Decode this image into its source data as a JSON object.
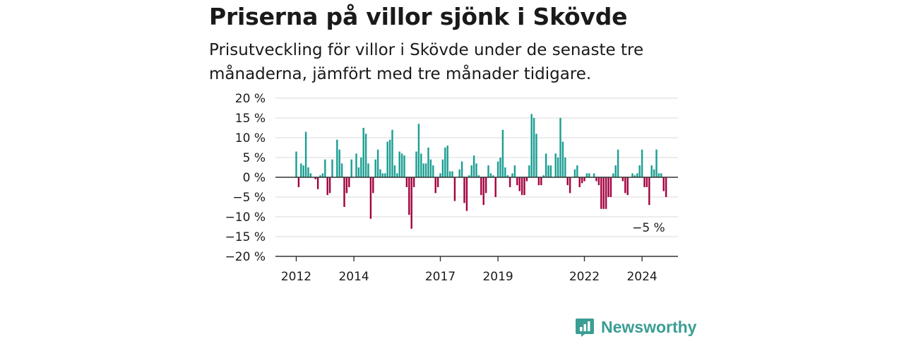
{
  "title": "Priserna på villor sjönk i Skövde",
  "subtitle": "Prisutveckling för villor i Skövde under de senaste tre månaderna, jämfört med tre månader tidigare.",
  "brand": {
    "name": "Newsworthy",
    "icon": "newsworthy-logo-icon",
    "color": "#3a9e94"
  },
  "colors": {
    "positive": "#1a9e92",
    "negative": "#a3003f",
    "grid": "#d9d9d9",
    "axis": "#333333"
  },
  "chart_data": {
    "type": "bar",
    "title": "Priserna på villor sjönk i Skövde",
    "subtitle": "Prisutveckling för villor i Skövde under de senaste tre månaderna, jämfört med tre månader tidigare.",
    "unit": "%",
    "ylim": [
      -20,
      20
    ],
    "y_ticks": [
      20,
      15,
      10,
      5,
      0,
      -5,
      -10,
      -15,
      -20
    ],
    "y_tick_labels": [
      "20 %",
      "15 %",
      "10 %",
      "5 %",
      "0 %",
      "−5 %",
      "−10 %",
      "−15 %",
      "−20 %"
    ],
    "x_ticks": [
      2012,
      2014,
      2017,
      2019,
      2022,
      2024
    ],
    "x_tick_labels": [
      "2012",
      "2014",
      "2017",
      "2019",
      "2022",
      "2024"
    ],
    "x_start": "2012-01",
    "x_interval": "month",
    "grid": true,
    "annotation": {
      "text": "−5 %",
      "target": "last"
    },
    "values": [
      6.5,
      -2.5,
      3.5,
      3,
      11.5,
      2.5,
      1,
      0,
      -0.5,
      -3,
      0.5,
      1,
      4.5,
      -4.5,
      -4,
      4.5,
      0,
      9.5,
      7,
      3.5,
      -7.5,
      -4,
      -2.5,
      4.5,
      0,
      6,
      2.5,
      5,
      12.5,
      11,
      3.5,
      -10.5,
      -4,
      4.5,
      7,
      2,
      1,
      1,
      9,
      9.5,
      12,
      3,
      1,
      6.5,
      6,
      5.5,
      -2.5,
      -9.5,
      -13,
      -2.5,
      6.5,
      13.5,
      6,
      3.5,
      3.5,
      7.5,
      4.5,
      3,
      -4,
      -2.5,
      1,
      4.5,
      7.5,
      8,
      1.5,
      1.5,
      -6,
      0,
      2,
      4,
      -6.5,
      -8.5,
      0.5,
      3,
      5.5,
      3.5,
      0.5,
      -4.5,
      -7,
      -4,
      3,
      1,
      0.5,
      -5,
      4,
      5,
      12,
      2.5,
      0.5,
      -2.5,
      1,
      3,
      -2,
      -3.5,
      -4.5,
      -4.5,
      -1,
      3,
      16,
      15,
      11,
      -2,
      -2,
      0.5,
      6,
      3,
      3,
      0,
      6,
      5,
      15,
      9,
      5,
      -2,
      -4,
      0,
      2,
      3,
      -2.5,
      -1.5,
      -1,
      1,
      1,
      0,
      1,
      -1,
      -2,
      -8,
      -8,
      -8,
      -5,
      -5,
      1,
      3,
      7,
      0,
      -1,
      -4,
      -4.5,
      0,
      1,
      0.5,
      1,
      3,
      7,
      -2.5,
      -2.5,
      -7,
      3,
      2,
      7,
      1,
      1,
      -3.5,
      -5
    ]
  }
}
